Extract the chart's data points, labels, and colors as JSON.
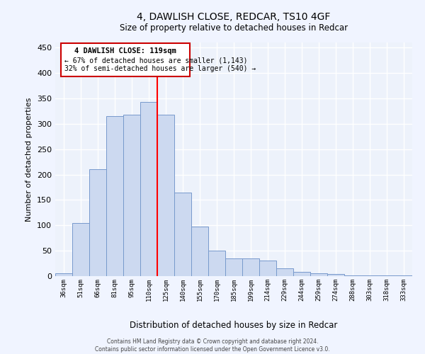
{
  "title": "4, DAWLISH CLOSE, REDCAR, TS10 4GF",
  "subtitle": "Size of property relative to detached houses in Redcar",
  "xlabel": "Distribution of detached houses by size in Redcar",
  "ylabel": "Number of detached properties",
  "categories": [
    "36sqm",
    "51sqm",
    "66sqm",
    "81sqm",
    "95sqm",
    "110sqm",
    "125sqm",
    "140sqm",
    "155sqm",
    "170sqm",
    "185sqm",
    "199sqm",
    "214sqm",
    "229sqm",
    "244sqm",
    "259sqm",
    "274sqm",
    "288sqm",
    "303sqm",
    "318sqm",
    "333sqm"
  ],
  "values": [
    6,
    105,
    210,
    315,
    318,
    343,
    318,
    165,
    97,
    50,
    35,
    35,
    30,
    15,
    9,
    5,
    4,
    2,
    1,
    1,
    1
  ],
  "bar_color": "#ccd9f0",
  "bar_edge_color": "#7799cc",
  "property_line_x": 6.0,
  "annotation_line1": "4 DAWLISH CLOSE: 119sqm",
  "annotation_line2": "← 67% of detached houses are smaller (1,143)",
  "annotation_line3": "32% of semi-detached houses are larger (540) →",
  "annotation_box_color": "#cc0000",
  "ylim": [
    0,
    460
  ],
  "yticks": [
    0,
    50,
    100,
    150,
    200,
    250,
    300,
    350,
    400,
    450
  ],
  "footer_line1": "Contains HM Land Registry data © Crown copyright and database right 2024.",
  "footer_line2": "Contains public sector information licensed under the Open Government Licence v3.0.",
  "bg_color": "#edf2fb",
  "grid_color": "#ffffff"
}
